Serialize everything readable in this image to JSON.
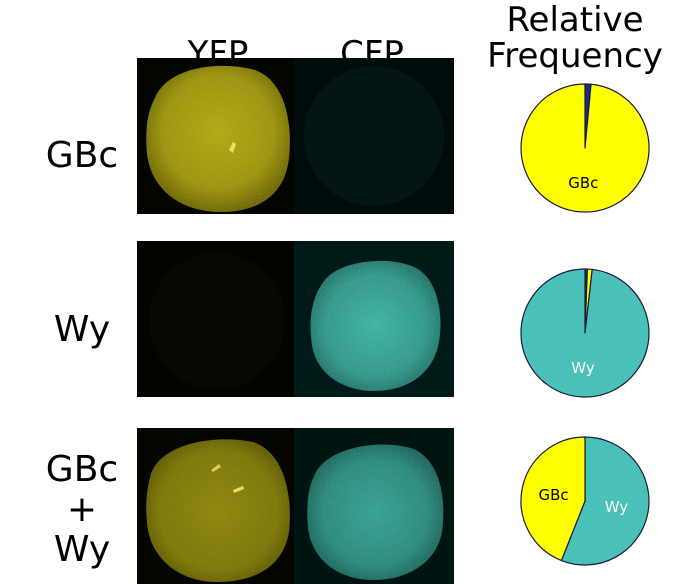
{
  "header": {
    "yfp": "YFP",
    "cfp": "CFP",
    "relative_line1": "Relative",
    "relative_line2": "Frequency"
  },
  "rows": [
    {
      "label_lines": [
        "GBc"
      ],
      "pie": {
        "slices": [
          {
            "label": "",
            "fraction": 0.015,
            "color": "#1a2b8c"
          },
          {
            "label": "GBc",
            "fraction": 0.985,
            "color": "#ffff00"
          }
        ]
      }
    },
    {
      "label_lines": [
        "Wy"
      ],
      "pie": {
        "slices": [
          {
            "label": "",
            "fraction": 0.006,
            "color": "#1a2b8c"
          },
          {
            "label": "",
            "fraction": 0.012,
            "color": "#ffff00"
          },
          {
            "label": "Wy",
            "fraction": 0.982,
            "color": "#4ac1b8"
          }
        ]
      }
    },
    {
      "label_lines": [
        "GBc",
        "+",
        "Wy"
      ],
      "pie": {
        "slices": [
          {
            "label": "Wy",
            "fraction": 0.56,
            "color": "#4ac1b8"
          },
          {
            "label": "GBc",
            "fraction": 0.44,
            "color": "#ffff00"
          }
        ]
      }
    }
  ],
  "colors": {
    "yfp_signal": "#a09a10",
    "cfp_signal": "#3aa89a",
    "pie_outline": "#1a1a3a",
    "pie_label_on_yellow": "#000000",
    "pie_label_on_teal": "#ffffff"
  }
}
